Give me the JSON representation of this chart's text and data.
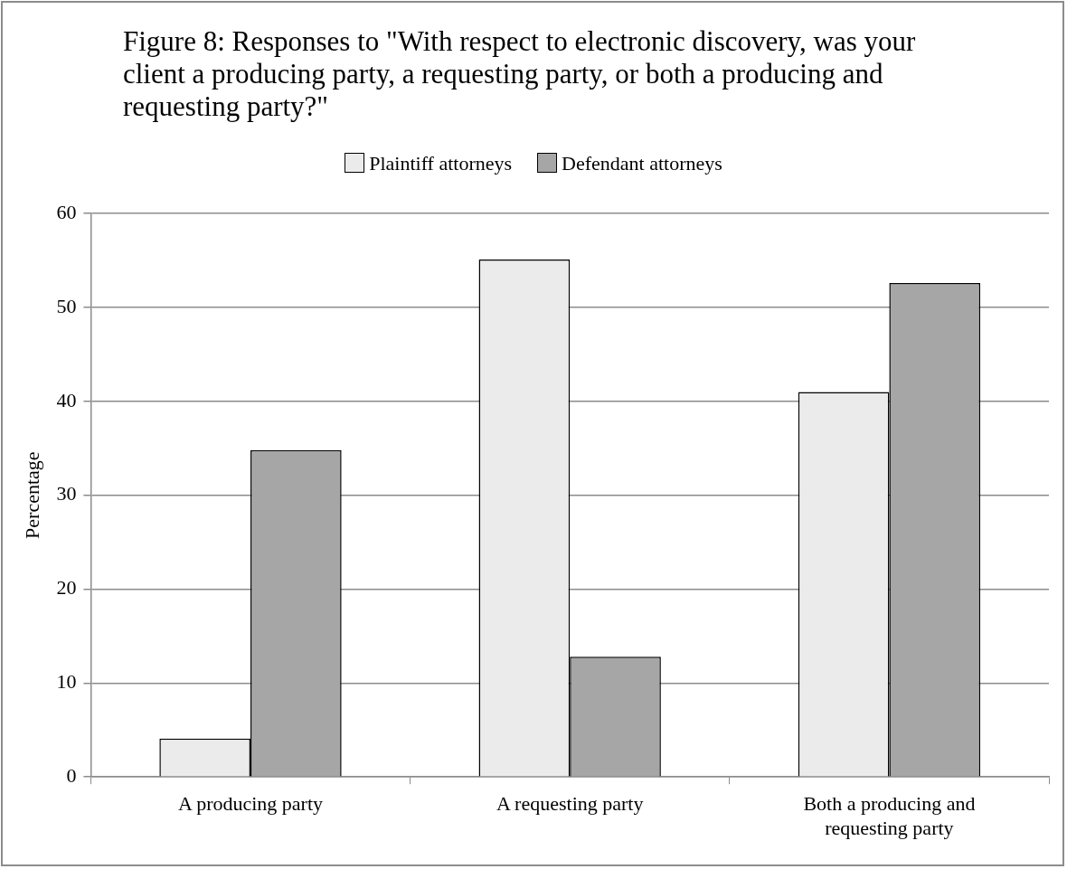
{
  "chart_data": {
    "type": "bar",
    "title": "Figure 8: Responses to \"With respect to electronic discovery, was your client a producing party, a requesting party, or both a producing and requesting party?\"",
    "ylabel": "Percentage",
    "categories": [
      "A producing party",
      "A requesting party",
      "Both a producing and requesting party"
    ],
    "series": [
      {
        "name": "Plaintiff attorneys",
        "color": "#ebebeb",
        "values": [
          4.1,
          55.1,
          41.0
        ]
      },
      {
        "name": "Defendant attorneys",
        "color": "#a6a6a6",
        "values": [
          34.8,
          12.8,
          52.6
        ]
      }
    ],
    "ylim": [
      0,
      60
    ],
    "yticks": [
      0,
      10,
      20,
      30,
      40,
      50,
      60
    ],
    "grid": "y",
    "legend": "top"
  }
}
